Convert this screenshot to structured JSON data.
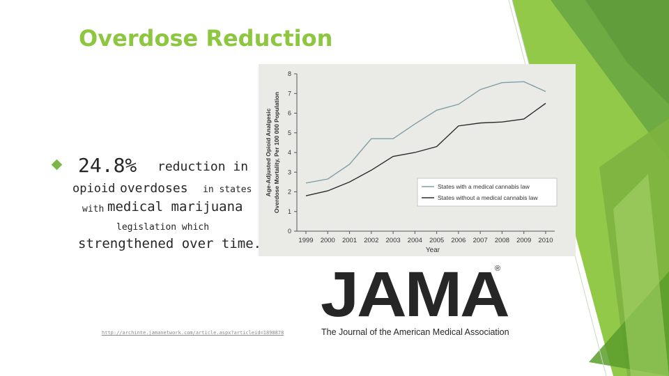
{
  "slide": {
    "title": "Overdose Reduction",
    "colors": {
      "title": "#8dc63f",
      "accent_green": "#7ab648",
      "chart_bg": "#eaeae6"
    }
  },
  "bullet": {
    "icon": "diamond-bullet-icon",
    "pct": "24.8%",
    "w_reduction": "reduction in",
    "w_opioid": "opioid",
    "w_overdoses": "overdoses",
    "w_in_states": "in states",
    "w_with": "with",
    "w_medical_marijuana": "medical marijuana",
    "w_legislation": "legislation which",
    "w_strengthened": "strengthened over time."
  },
  "source": {
    "url": "http://archinte.jamanetwork.com/article.aspx?articleid=1898878"
  },
  "jama": {
    "logo": "JAMA",
    "registered": "®",
    "subtitle": "The Journal of the American Medical Association"
  },
  "chart_data": {
    "type": "line",
    "title": "",
    "xlabel": "Year",
    "ylabel_line1": "Age-Adjusted Opioid Analgesic",
    "ylabel_line2": "Overdose Mortality, Per 100 000 Population",
    "x": [
      1999,
      2000,
      2001,
      2002,
      2003,
      2004,
      2005,
      2006,
      2007,
      2008,
      2009,
      2010
    ],
    "ylim": [
      0,
      8
    ],
    "yticks": [
      0,
      1,
      2,
      3,
      4,
      5,
      6,
      7,
      8
    ],
    "legend_position": "center-right",
    "series": [
      {
        "name": "States with a medical cannabis law",
        "color": "#7f9fa6",
        "values": [
          2.45,
          2.65,
          3.4,
          4.7,
          4.7,
          5.45,
          6.15,
          6.45,
          7.2,
          7.55,
          7.6,
          7.1
        ]
      },
      {
        "name": "States without a medical cannabis law",
        "color": "#2b2b2b",
        "values": [
          1.8,
          2.05,
          2.5,
          3.1,
          3.8,
          4.0,
          4.3,
          5.35,
          5.5,
          5.55,
          5.7,
          6.5
        ]
      }
    ]
  }
}
